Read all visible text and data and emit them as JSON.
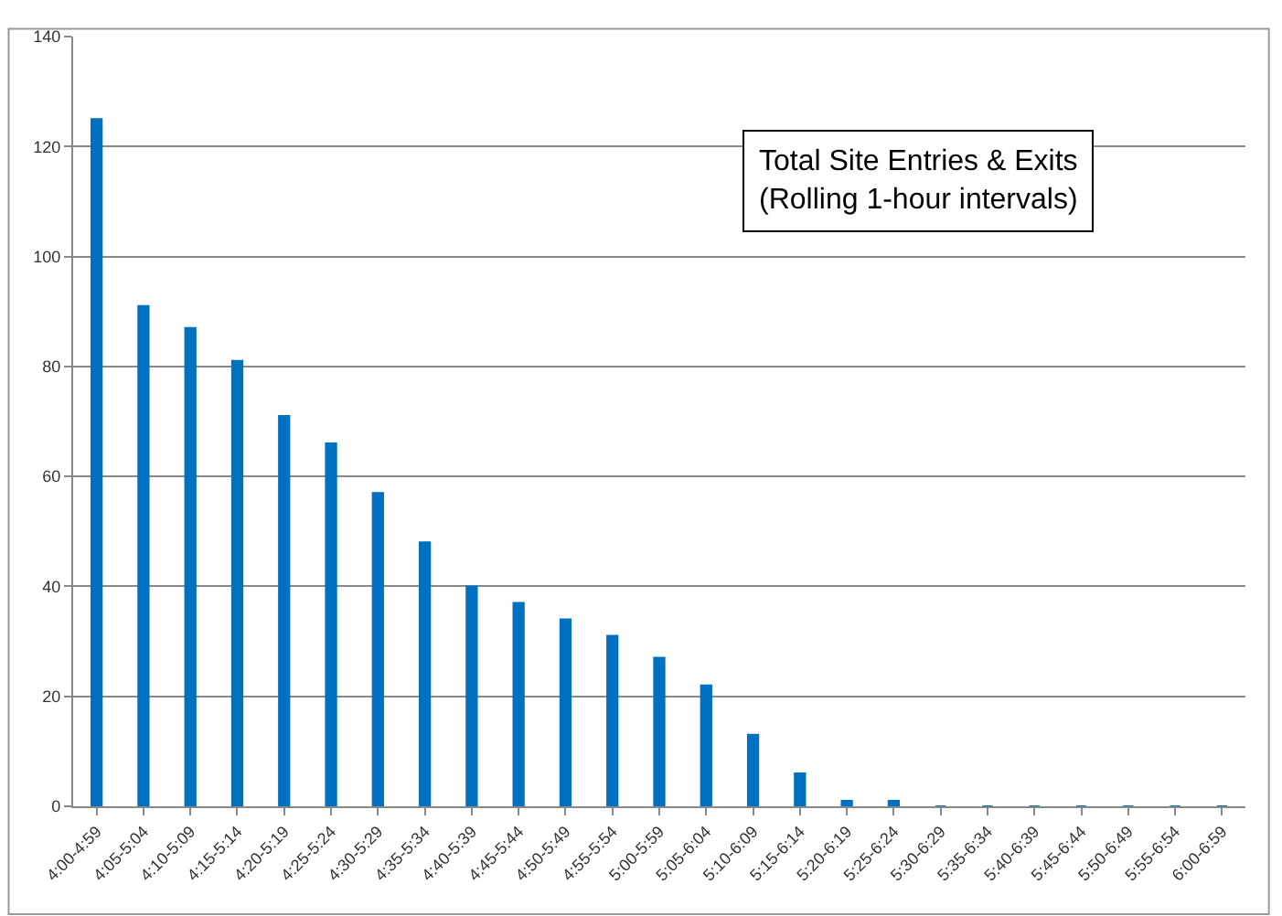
{
  "chart_data": {
    "type": "bar",
    "title": "Total Site Entries & Exits\n(Rolling 1-hour intervals)",
    "categories": [
      "4:00-4:59",
      "4:05-5:04",
      "4:10-5:09",
      "4:15-5:14",
      "4:20-5:19",
      "4:25-5:24",
      "4:30-5:29",
      "4:35-5:34",
      "4:40-5:39",
      "4:45-5:44",
      "4:50-5:49",
      "4:55-5:54",
      "5:00-5:59",
      "5:05-6:04",
      "5:10-6:09",
      "5:15-6:14",
      "5:20-6:19",
      "5:25-6:24",
      "5:30-6:29",
      "5:35-6:34",
      "5:40-6:39",
      "5:45-6:44",
      "5:50-6:49",
      "5:55-6:54",
      "6:00-6:59"
    ],
    "values": [
      125,
      91,
      87,
      81,
      71,
      66,
      57,
      48,
      40,
      37,
      34,
      31,
      27,
      22,
      13,
      6,
      1,
      1,
      0,
      0,
      0,
      0,
      0,
      0,
      0
    ],
    "color": "#0070c0",
    "ylim": [
      0,
      140
    ],
    "yticks": [
      0,
      20,
      40,
      60,
      80,
      100,
      120,
      140
    ],
    "grid": "y",
    "legend": false
  }
}
